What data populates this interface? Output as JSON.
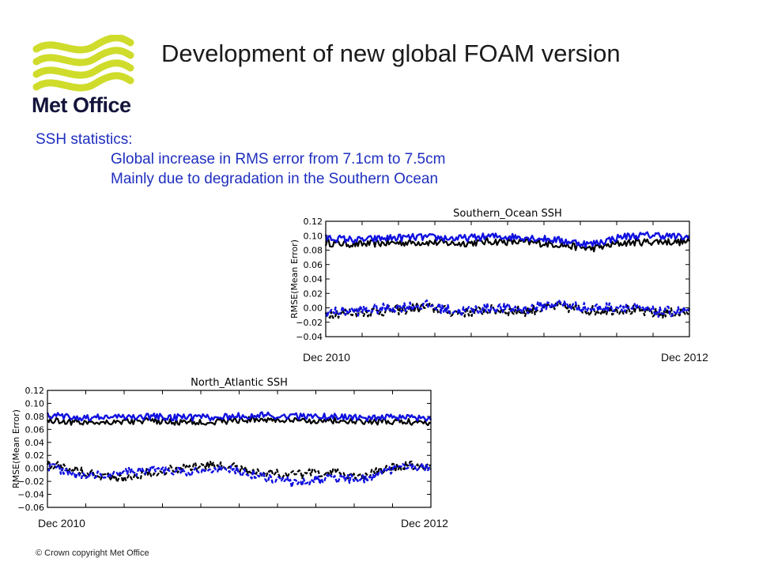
{
  "header": {
    "title": "Development of new global FOAM version"
  },
  "logo": {
    "text": "Met Office",
    "color": "#cfdc2b",
    "text_color": "#14143c"
  },
  "body": {
    "bullets": [
      "SSH statistics:",
      "Global increase in RMS error from 7.1cm to 7.5cm",
      "Mainly due to degradation in the Southern Ocean"
    ],
    "text_color": "#1f2fbf"
  },
  "footer": {
    "copyright": "© Crown copyright   Met Office"
  },
  "chart_data": [
    {
      "type": "line",
      "title": "Southern_Ocean SSH",
      "ylabel": "RMSE(Mean Error)",
      "ylim": [
        -0.04,
        0.12
      ],
      "yticks": [
        -0.04,
        -0.02,
        0.0,
        0.02,
        0.04,
        0.06,
        0.08,
        0.1,
        0.12
      ],
      "ytick_labels": [
        "−0.04",
        "−0.02",
        "0.00",
        "0.02",
        "0.04",
        "0.06",
        "0.08",
        "0.10",
        "0.12"
      ],
      "x_start_label": "Dec 2010",
      "x_end_label": "Dec 2012",
      "grid": false,
      "series": [
        {
          "color": "#000000",
          "rmse_values": [
            0.09,
            0.088,
            0.09,
            0.091,
            0.089,
            0.092,
            0.091,
            0.088,
            0.082,
            0.09,
            0.092,
            0.091
          ],
          "mean_values": [
            -0.008,
            -0.006,
            -0.004,
            0.001,
            -0.007,
            -0.003,
            -0.005,
            0.002,
            -0.004,
            -0.002,
            -0.008,
            -0.006
          ]
        },
        {
          "color": "#1010e0",
          "rmse_values": [
            0.097,
            0.094,
            0.097,
            0.098,
            0.096,
            0.099,
            0.098,
            0.094,
            0.088,
            0.099,
            0.101,
            0.097
          ],
          "mean_values": [
            -0.006,
            -0.004,
            0.0,
            0.004,
            -0.005,
            0.0,
            -0.002,
            0.006,
            -0.001,
            0.002,
            -0.006,
            -0.004
          ]
        }
      ]
    },
    {
      "type": "line",
      "title": "North_Atlantic SSH",
      "ylabel": "RMSE(Mean Error)",
      "ylim": [
        -0.06,
        0.12
      ],
      "yticks": [
        -0.06,
        -0.04,
        -0.02,
        0.0,
        0.02,
        0.04,
        0.06,
        0.08,
        0.1,
        0.12
      ],
      "ytick_labels": [
        "−0.06",
        "−0.04",
        "−0.02",
        "0.00",
        "0.02",
        "0.04",
        "0.06",
        "0.08",
        "0.10",
        "0.12"
      ],
      "x_start_label": "Dec 2010",
      "x_end_label": "Dec 2012",
      "grid": false,
      "series": [
        {
          "color": "#000000",
          "rmse_values": [
            0.074,
            0.071,
            0.072,
            0.073,
            0.071,
            0.072,
            0.076,
            0.073,
            0.074,
            0.071,
            0.072,
            0.071
          ],
          "mean_values": [
            0.008,
            -0.004,
            -0.016,
            -0.006,
            0.002,
            0.005,
            -0.005,
            -0.01,
            -0.006,
            -0.012,
            0.002,
            0.006
          ]
        },
        {
          "color": "#1010e0",
          "rmse_values": [
            0.082,
            0.078,
            0.079,
            0.08,
            0.078,
            0.079,
            0.082,
            0.08,
            0.08,
            0.078,
            0.078,
            0.076
          ],
          "mean_values": [
            0.004,
            -0.012,
            -0.008,
            -0.002,
            -0.006,
            0.0,
            -0.01,
            -0.022,
            -0.016,
            -0.016,
            0.0,
            0.004
          ]
        }
      ]
    }
  ]
}
